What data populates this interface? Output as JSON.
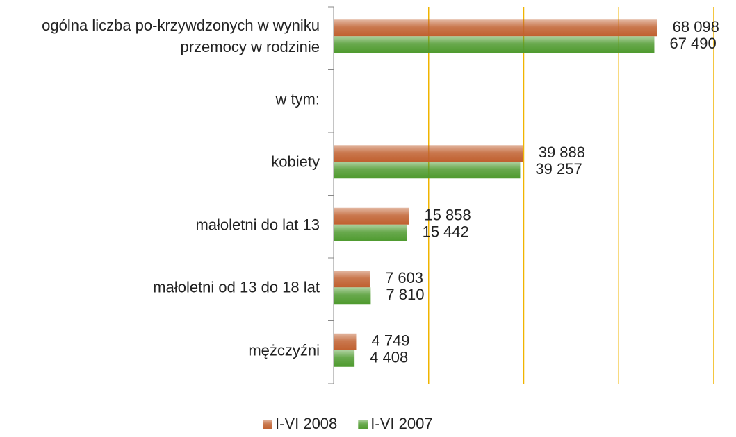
{
  "chart_data": {
    "type": "hbar",
    "categories": [
      "ogólna liczba po-krzywdzonych w wyniku przemocy w rodzinie",
      "w tym:",
      "kobiety",
      "małoletni do lat 13",
      "małoletni od 13 do 18 lat",
      "mężczyźni"
    ],
    "series": [
      {
        "name": "I-VI 2008",
        "color": "#c0602f",
        "values": [
          68098,
          null,
          39888,
          15858,
          7603,
          4749
        ],
        "value_labels": [
          "68 098",
          null,
          "39 888",
          "15 858",
          "7 603",
          "4 749"
        ]
      },
      {
        "name": "I-VI 2007",
        "color": "#4e9a2e",
        "values": [
          67490,
          null,
          39257,
          15442,
          7810,
          4408
        ],
        "value_labels": [
          "67 490",
          null,
          "39 257",
          "15 442",
          "7 810",
          "4 408"
        ]
      }
    ],
    "xlim": [
      0,
      80000
    ],
    "xticks": [
      0,
      20000,
      40000,
      60000,
      80000
    ],
    "grid": true,
    "legend": "bottom"
  }
}
